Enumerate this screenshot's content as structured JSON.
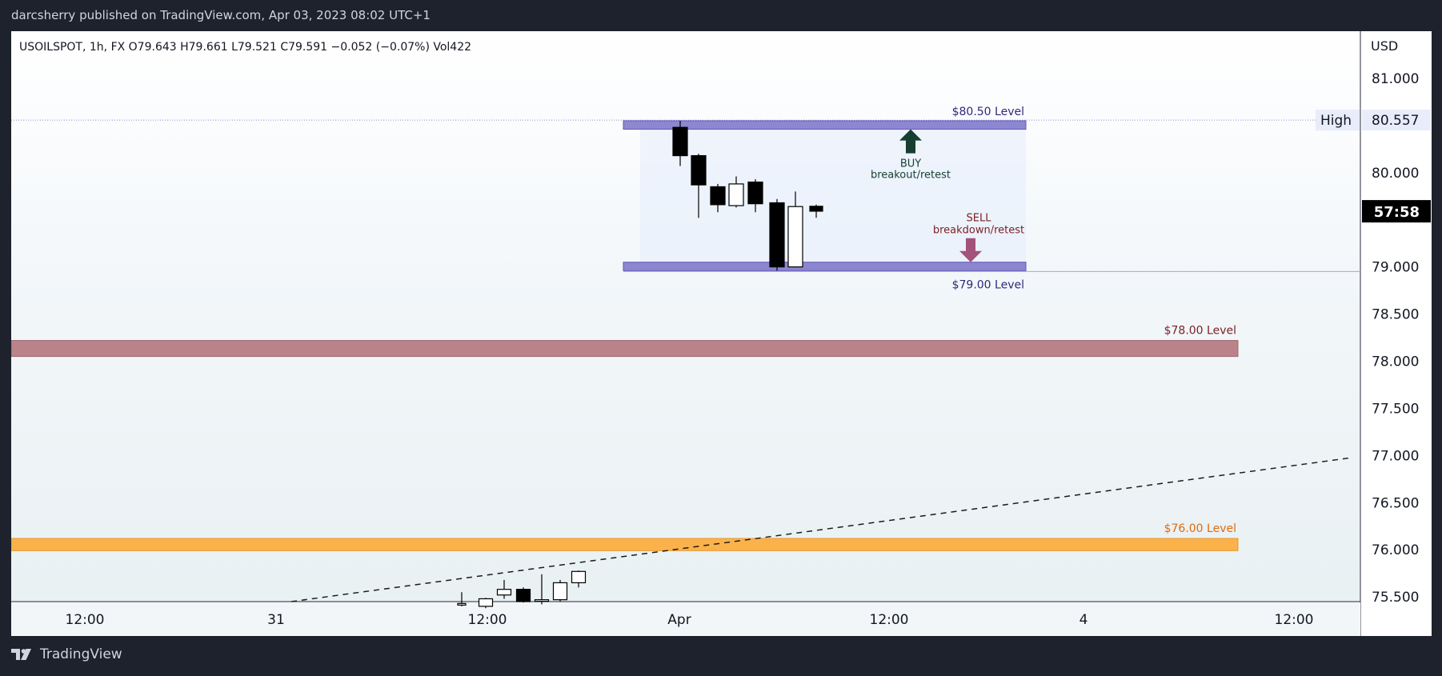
{
  "header": {
    "publisher_line": "darcsherry published on TradingView.com, Apr 03, 2023 08:02 UTC+1"
  },
  "footer": {
    "brand": "TradingView"
  },
  "chart_data": {
    "type": "candlestick",
    "symbol_line": "USOILSPOT, 1h, FX  O79.643  H79.661  L79.521  C79.591  −0.052 (−0.07%)  Vol422",
    "currency": "USD",
    "ylim": [
      75.45,
      81.5
    ],
    "y_ticks": [
      {
        "value": 81.0,
        "label": "81.000"
      },
      {
        "value": 80.0,
        "label": "80.000"
      },
      {
        "value": 79.0,
        "label": "79.000"
      },
      {
        "value": 78.5,
        "label": "78.500"
      },
      {
        "value": 78.0,
        "label": "78.000"
      },
      {
        "value": 77.5,
        "label": "77.500"
      },
      {
        "value": 77.0,
        "label": "77.000"
      },
      {
        "value": 76.5,
        "label": "76.500"
      },
      {
        "value": 76.0,
        "label": "76.000"
      },
      {
        "value": 75.5,
        "label": "75.500"
      }
    ],
    "x_ticks": [
      "12:00",
      "31",
      "12:00",
      "Apr",
      "12:00",
      "4",
      "12:00"
    ],
    "high_marker": {
      "label": "High",
      "value": 80.557,
      "value_label": "80.557"
    },
    "countdown": {
      "label": "57:58",
      "value": 79.59
    },
    "candles": [
      {
        "o": 75.42,
        "h": 75.55,
        "l": 75.4,
        "c": 75.43
      },
      {
        "o": 75.4,
        "h": 75.49,
        "l": 75.38,
        "c": 75.48
      },
      {
        "o": 75.52,
        "h": 75.68,
        "l": 75.48,
        "c": 75.58
      },
      {
        "o": 75.58,
        "h": 75.6,
        "l": 75.44,
        "c": 75.45
      },
      {
        "o": 75.46,
        "h": 75.74,
        "l": 75.42,
        "c": 75.47
      },
      {
        "o": 75.47,
        "h": 75.68,
        "l": 75.45,
        "c": 75.65
      },
      {
        "o": 75.65,
        "h": 75.78,
        "l": 75.6,
        "c": 75.77
      },
      {
        "o": 80.48,
        "h": 80.55,
        "l": 80.07,
        "c": 80.18
      },
      {
        "o": 80.18,
        "h": 80.2,
        "l": 79.52,
        "c": 79.87
      },
      {
        "o": 79.85,
        "h": 79.88,
        "l": 79.58,
        "c": 79.66
      },
      {
        "o": 79.65,
        "h": 79.96,
        "l": 79.63,
        "c": 79.88
      },
      {
        "o": 79.9,
        "h": 79.93,
        "l": 79.58,
        "c": 79.67
      },
      {
        "o": 79.68,
        "h": 79.72,
        "l": 78.96,
        "c": 79.0
      },
      {
        "o": 79.0,
        "h": 79.8,
        "l": 79.0,
        "c": 79.64
      },
      {
        "o": 79.643,
        "h": 79.661,
        "l": 79.521,
        "c": 79.591
      }
    ],
    "annotations": [
      {
        "type": "zone",
        "label": "$80.50 Level",
        "from": 80.46,
        "to": 80.55,
        "color": "#7b72c8",
        "label_color": "#2e2a7a"
      },
      {
        "type": "zone",
        "label": "$79.00 Level",
        "from": 78.96,
        "to": 79.05,
        "color": "#7b72c8",
        "label_color": "#2e2a7a"
      },
      {
        "type": "zone",
        "label": "$78.00 Level",
        "from": 78.05,
        "to": 78.22,
        "color": "#b98389",
        "label_color": "#7a1f23"
      },
      {
        "type": "zone",
        "label": "$76.00 Level",
        "from": 75.99,
        "to": 76.12,
        "color": "#fbb24b",
        "label_color": "#e06a0c"
      },
      {
        "type": "arrow-up",
        "text_lines": [
          "BUY",
          "breakout/retest"
        ],
        "color": "#163f31"
      },
      {
        "type": "arrow-down",
        "text_lines": [
          "SELL",
          "breakdown/retest"
        ],
        "color": "#a3527c",
        "text_color": "#7a1f23"
      },
      {
        "type": "trendline",
        "style": "dashed",
        "color": "#1b1b1b"
      }
    ]
  }
}
